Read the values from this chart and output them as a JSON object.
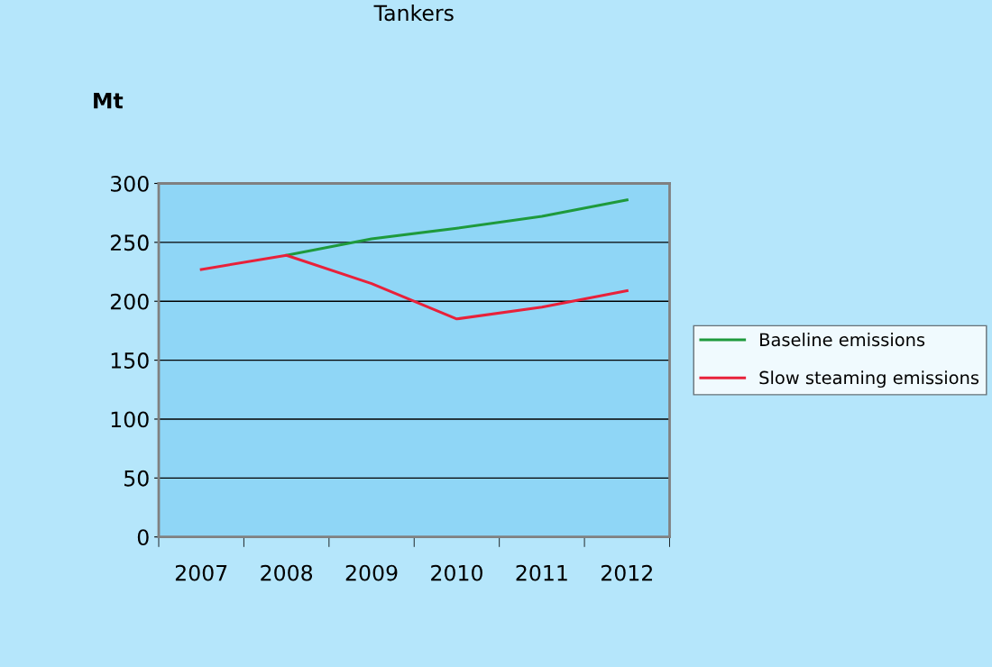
{
  "chart_data": {
    "type": "line",
    "title": "Tankers",
    "ylabel": "Mt",
    "categories": [
      "2007",
      "2008",
      "2009",
      "2010",
      "2011",
      "2012"
    ],
    "series": [
      {
        "name": "Baseline emissions",
        "color": "#1e9a3c",
        "values": [
          null,
          239,
          253,
          262,
          272,
          286
        ]
      },
      {
        "name": "Slow steaming emissions",
        "color": "#e8213a",
        "values": [
          227,
          239,
          215,
          185,
          195,
          209
        ]
      }
    ],
    "ylim": [
      0,
      300
    ],
    "yticks": [
      0,
      50,
      100,
      150,
      200,
      250,
      300
    ],
    "grid": "y",
    "legend": "right",
    "marker": "none",
    "line_style": "solid"
  }
}
